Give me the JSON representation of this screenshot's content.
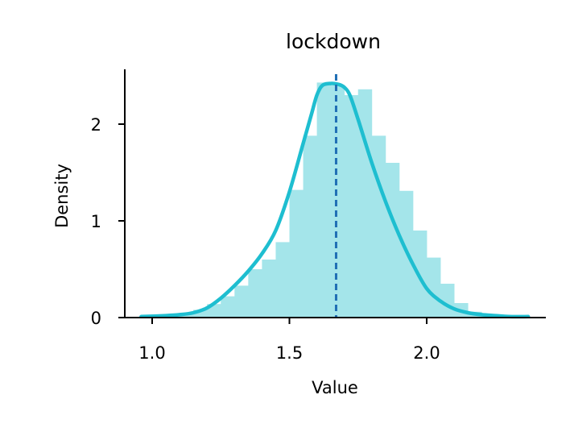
{
  "chart_data": {
    "type": "area",
    "title": "lockdown",
    "xlabel": "Value",
    "ylabel": "Density",
    "xlim": [
      0.9,
      2.45
    ],
    "ylim": [
      0,
      2.6
    ],
    "xticks": [
      "1.0",
      "1.5",
      "2.0"
    ],
    "xtick_values": [
      1.0,
      1.5,
      2.0
    ],
    "yticks": [
      "0",
      "1",
      "2"
    ],
    "ytick_values": [
      0,
      1,
      2
    ],
    "histogram": {
      "bin_width": 0.05,
      "bins": [
        {
          "x0": 0.95,
          "value": 0.01
        },
        {
          "x0": 1.0,
          "value": 0.02
        },
        {
          "x0": 1.05,
          "value": 0.03
        },
        {
          "x0": 1.1,
          "value": 0.05
        },
        {
          "x0": 1.15,
          "value": 0.08
        },
        {
          "x0": 1.2,
          "value": 0.14
        },
        {
          "x0": 1.25,
          "value": 0.22
        },
        {
          "x0": 1.3,
          "value": 0.33
        },
        {
          "x0": 1.35,
          "value": 0.5
        },
        {
          "x0": 1.4,
          "value": 0.6
        },
        {
          "x0": 1.45,
          "value": 0.78
        },
        {
          "x0": 1.5,
          "value": 1.32
        },
        {
          "x0": 1.55,
          "value": 1.88
        },
        {
          "x0": 1.6,
          "value": 2.43
        },
        {
          "x0": 1.65,
          "value": 2.4
        },
        {
          "x0": 1.7,
          "value": 2.3
        },
        {
          "x0": 1.75,
          "value": 2.36
        },
        {
          "x0": 1.8,
          "value": 1.88
        },
        {
          "x0": 1.85,
          "value": 1.6
        },
        {
          "x0": 1.9,
          "value": 1.31
        },
        {
          "x0": 1.95,
          "value": 0.9
        },
        {
          "x0": 2.0,
          "value": 0.62
        },
        {
          "x0": 2.05,
          "value": 0.35
        },
        {
          "x0": 2.1,
          "value": 0.15
        },
        {
          "x0": 2.15,
          "value": 0.06
        },
        {
          "x0": 2.2,
          "value": 0.03
        },
        {
          "x0": 2.25,
          "value": 0.02
        },
        {
          "x0": 2.3,
          "value": 0.01
        }
      ]
    },
    "kde": {
      "x": [
        0.96,
        1.05,
        1.1,
        1.15,
        1.2,
        1.25,
        1.3,
        1.35,
        1.4,
        1.45,
        1.5,
        1.55,
        1.58,
        1.6,
        1.62,
        1.65,
        1.68,
        1.7,
        1.72,
        1.75,
        1.8,
        1.85,
        1.9,
        1.95,
        2.0,
        2.05,
        2.1,
        2.15,
        2.2,
        2.25,
        2.3,
        2.37
      ],
      "y": [
        0.01,
        0.02,
        0.03,
        0.05,
        0.1,
        0.2,
        0.33,
        0.48,
        0.66,
        0.9,
        1.3,
        1.8,
        2.1,
        2.3,
        2.4,
        2.42,
        2.41,
        2.38,
        2.3,
        2.05,
        1.6,
        1.2,
        0.85,
        0.55,
        0.3,
        0.17,
        0.09,
        0.05,
        0.03,
        0.02,
        0.01,
        0.01
      ]
    },
    "mean_line": 1.67,
    "colors": {
      "bars": "#a4e5ea",
      "kde": "#1ebed0",
      "mean": "#1f6fb5"
    },
    "grid": false
  }
}
